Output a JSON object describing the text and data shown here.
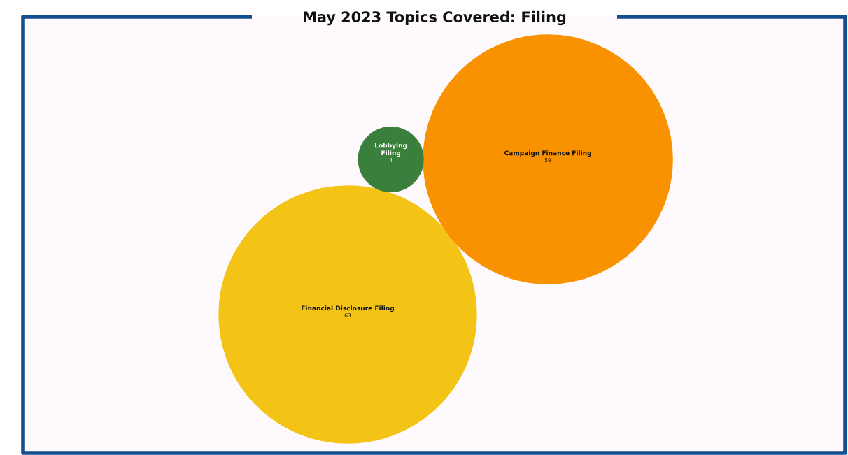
{
  "chart_data": {
    "type": "other",
    "title": "May 2023 Topics Covered: Filing",
    "categories": [
      "Financial Disclosure Filing",
      "Campaign Finance Filing",
      "Lobbying Filing"
    ],
    "values": [
      63,
      59,
      4
    ],
    "colors": [
      "#f3c316",
      "#f99200",
      "#3a803c"
    ],
    "data_labels": true
  }
}
